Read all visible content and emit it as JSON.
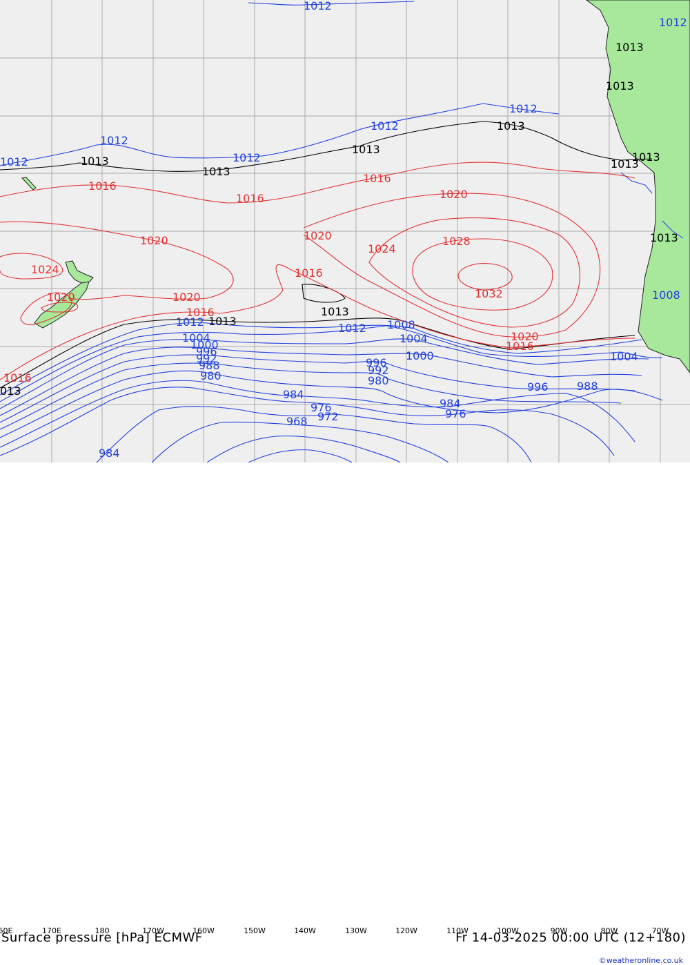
{
  "title": "Surface pressure [hPa] ECMWF",
  "valid_time": "Fr 14-03-2025 00:00 UTC (12+180)",
  "credit": "©weatheronline.co.uk",
  "colors": {
    "ocean": "#efefef",
    "land": "#a7e89b",
    "grid": "#aaaaaa",
    "isobar_low": "#1f3fe0",
    "isobar_ref": "#000000",
    "isobar_high": "#e33030"
  },
  "longitude_labels": [
    "60E",
    "170E",
    "180",
    "170W",
    "160W",
    "150W",
    "140W",
    "130W",
    "120W",
    "110W",
    "100W",
    "90W",
    "80W",
    "70W"
  ],
  "isobar_labels": [
    {
      "text": "1012",
      "c": "b"
    },
    {
      "text": "1012",
      "c": "b"
    },
    {
      "text": "1012",
      "c": "b"
    },
    {
      "text": "1012",
      "c": "b"
    },
    {
      "text": "1012",
      "c": "b"
    },
    {
      "text": "1012",
      "c": "b"
    },
    {
      "text": "1012",
      "c": "b"
    },
    {
      "text": "1012",
      "c": "b"
    },
    {
      "text": "1012",
      "c": "b"
    },
    {
      "text": "1013",
      "c": "k"
    },
    {
      "text": "1013",
      "c": "k"
    },
    {
      "text": "1013",
      "c": "k"
    },
    {
      "text": "1013",
      "c": "k"
    },
    {
      "text": "1013",
      "c": "k"
    },
    {
      "text": "1013",
      "c": "k"
    },
    {
      "text": "1013",
      "c": "k"
    },
    {
      "text": "1013",
      "c": "k"
    },
    {
      "text": "1013",
      "c": "k"
    },
    {
      "text": "1013",
      "c": "k"
    },
    {
      "text": "1013",
      "c": "k"
    },
    {
      "text": "013",
      "c": "k"
    },
    {
      "text": "1016",
      "c": "r"
    },
    {
      "text": "1016",
      "c": "r"
    },
    {
      "text": "1016",
      "c": "r"
    },
    {
      "text": "1016",
      "c": "r"
    },
    {
      "text": "1016",
      "c": "r"
    },
    {
      "text": "1016",
      "c": "r"
    },
    {
      "text": "1016",
      "c": "r"
    },
    {
      "text": "1020",
      "c": "r"
    },
    {
      "text": "1020",
      "c": "r"
    },
    {
      "text": "1020",
      "c": "r"
    },
    {
      "text": "1020",
      "c": "r"
    },
    {
      "text": "1020",
      "c": "r"
    },
    {
      "text": "1020",
      "c": "r"
    },
    {
      "text": "1024",
      "c": "r"
    },
    {
      "text": "1024",
      "c": "r"
    },
    {
      "text": "1028",
      "c": "r"
    },
    {
      "text": "1032",
      "c": "r"
    },
    {
      "text": "1008",
      "c": "b"
    },
    {
      "text": "1008",
      "c": "b"
    },
    {
      "text": "1004",
      "c": "b"
    },
    {
      "text": "1004",
      "c": "b"
    },
    {
      "text": "1004",
      "c": "b"
    },
    {
      "text": "1000",
      "c": "b"
    },
    {
      "text": "1000",
      "c": "b"
    },
    {
      "text": "996",
      "c": "b"
    },
    {
      "text": "996",
      "c": "b"
    },
    {
      "text": "996",
      "c": "b"
    },
    {
      "text": "992",
      "c": "b"
    },
    {
      "text": "992",
      "c": "b"
    },
    {
      "text": "988",
      "c": "b"
    },
    {
      "text": "988",
      "c": "b"
    },
    {
      "text": "984",
      "c": "b"
    },
    {
      "text": "984",
      "c": "b"
    },
    {
      "text": "984",
      "c": "b"
    },
    {
      "text": "980",
      "c": "b"
    },
    {
      "text": "980",
      "c": "b"
    },
    {
      "text": "976",
      "c": "b"
    },
    {
      "text": "976",
      "c": "b"
    },
    {
      "text": "972",
      "c": "b"
    },
    {
      "text": "968",
      "c": "b"
    }
  ]
}
